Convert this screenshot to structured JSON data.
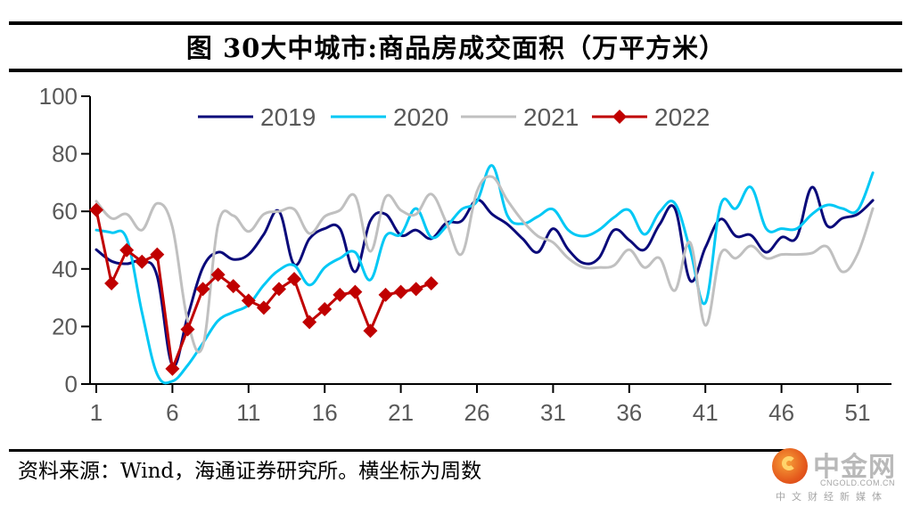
{
  "title": "图 30大中城市:商品房成交面积（万平方米）",
  "source_note": "资料来源：Wind，海通证券研究所。横坐标为周数",
  "watermark": {
    "brand": "中金网",
    "domain": "CNGOLD.COM.CN",
    "tagline": "中文财经新媒体",
    "icon": "cngold-logo-icon"
  },
  "chart_data": {
    "type": "line",
    "title": "大中城市:商品房成交面积（万平方米）",
    "xlabel": "周数",
    "ylabel": "万平方米",
    "ylim": [
      0,
      100
    ],
    "yticks": [
      0,
      20,
      40,
      60,
      80,
      100
    ],
    "xlim": [
      1,
      52
    ],
    "xticks": [
      1,
      6,
      11,
      16,
      21,
      26,
      31,
      36,
      41,
      46,
      51
    ],
    "grid": false,
    "legend_position": "top-center",
    "series": [
      {
        "name": "2019",
        "color": "#0a0a7a",
        "marker": "none",
        "x": [
          1,
          2,
          3,
          4,
          5,
          6,
          7,
          8,
          9,
          10,
          11,
          12,
          13,
          14,
          15,
          16,
          17,
          18,
          19,
          20,
          21,
          22,
          23,
          24,
          25,
          26,
          27,
          28,
          29,
          30,
          31,
          32,
          33,
          34,
          35,
          36,
          37,
          38,
          39,
          40,
          41,
          42,
          43,
          44,
          45,
          46,
          47,
          48,
          49,
          50,
          51,
          52
        ],
        "values": [
          46.7,
          42.7,
          41.8,
          42.7,
          37.5,
          6.5,
          23.5,
          40.5,
          45.8,
          43.3,
          45,
          52,
          60,
          41.5,
          50.5,
          54,
          54,
          39,
          56.7,
          59,
          51.7,
          53.5,
          50.5,
          56,
          56.7,
          64,
          59,
          55.5,
          50.5,
          45.8,
          54,
          46.7,
          42,
          43.7,
          53.5,
          50,
          46.7,
          55.5,
          61,
          36,
          47.4,
          57.3,
          51.4,
          51.7,
          45.8,
          51,
          51,
          68.4,
          55,
          57.6,
          59,
          63.8
        ]
      },
      {
        "name": "2020",
        "color": "#00c8f5",
        "marker": "none",
        "x": [
          1,
          2,
          3,
          4,
          5,
          6,
          7,
          8,
          9,
          10,
          11,
          12,
          13,
          14,
          15,
          16,
          17,
          18,
          19,
          20,
          21,
          22,
          23,
          24,
          25,
          26,
          27,
          28,
          29,
          30,
          31,
          32,
          33,
          34,
          35,
          36,
          37,
          38,
          39,
          40,
          41,
          42,
          43,
          44,
          45,
          46,
          47,
          48,
          49,
          50,
          51,
          52
        ],
        "values": [
          53.5,
          52.6,
          50.5,
          25,
          3.4,
          1,
          6.5,
          14.2,
          22,
          25,
          27.5,
          34.4,
          39.6,
          41.2,
          34.4,
          40.5,
          43.7,
          45.8,
          36.2,
          51.4,
          52,
          61,
          51,
          54.8,
          60.7,
          63.5,
          75.9,
          58.5,
          55.7,
          58.2,
          60.7,
          53.5,
          51.4,
          53.5,
          57.9,
          60.4,
          52,
          59.8,
          62.8,
          46.7,
          28.2,
          62.2,
          61,
          68.4,
          54,
          54,
          54,
          59,
          62.2,
          61,
          60.4,
          73.4
        ]
      },
      {
        "name": "2021",
        "color": "#c0c0c0",
        "marker": "none",
        "x": [
          1,
          2,
          3,
          4,
          5,
          6,
          7,
          8,
          9,
          10,
          11,
          12,
          13,
          14,
          15,
          16,
          17,
          18,
          19,
          20,
          21,
          22,
          23,
          24,
          25,
          26,
          27,
          28,
          29,
          30,
          31,
          32,
          33,
          34,
          35,
          36,
          37,
          38,
          39,
          40,
          41,
          42,
          43,
          44,
          45,
          46,
          47,
          48,
          49,
          50,
          51,
          52
        ],
        "values": [
          63.5,
          57.6,
          59,
          53.5,
          62.8,
          54.5,
          22,
          13.3,
          55.4,
          58.5,
          53,
          59,
          60,
          60.7,
          52.3,
          58.2,
          60.4,
          65.3,
          46.1,
          65,
          60.4,
          59,
          66,
          56,
          45.2,
          66.9,
          72,
          63.8,
          56.7,
          51.4,
          49.2,
          43.7,
          40.5,
          40.5,
          41.2,
          46.7,
          40.5,
          43.7,
          32.5,
          49.2,
          20.4,
          45.2,
          43.7,
          48,
          43.7,
          45,
          45,
          45.5,
          47.7,
          39,
          45.2,
          61
        ]
      },
      {
        "name": "2022",
        "color": "#c00000",
        "marker": "diamond",
        "x": [
          1,
          2,
          3,
          4,
          5,
          6,
          7,
          8,
          9,
          10,
          11,
          12,
          13,
          14,
          15,
          16,
          17,
          18,
          19,
          20,
          21,
          22,
          23
        ],
        "values": [
          60.5,
          35,
          46.5,
          42.5,
          45,
          5.3,
          19,
          33,
          38,
          34,
          29,
          26.5,
          33,
          36.5,
          21.5,
          26,
          31,
          32,
          18.5,
          31,
          32,
          33,
          35
        ]
      }
    ]
  }
}
